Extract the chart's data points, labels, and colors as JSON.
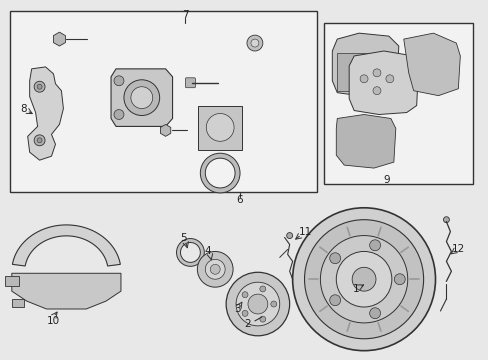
{
  "bg_color": "#e8e8e8",
  "line_color": "#333333",
  "box_color": "#333333",
  "label_color": "#222222"
}
